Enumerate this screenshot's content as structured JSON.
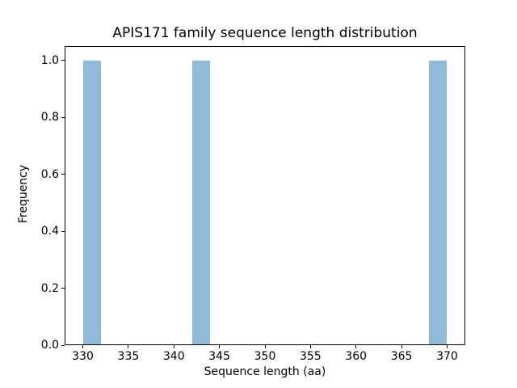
{
  "figure": {
    "background": "#ffffff"
  },
  "chart_data": {
    "type": "bar",
    "subtype": "histogram",
    "title": "APIS171 family sequence length distribution",
    "xlabel": "Sequence length (aa)",
    "ylabel": "Frequency",
    "bars": [
      {
        "x_start": 330,
        "x_end": 332,
        "height": 1.0
      },
      {
        "x_start": 342,
        "x_end": 344,
        "height": 1.0
      },
      {
        "x_start": 368,
        "x_end": 370,
        "height": 1.0
      }
    ],
    "xticks": [
      330,
      335,
      340,
      345,
      350,
      355,
      360,
      365,
      370
    ],
    "yticks": [
      0.0,
      0.2,
      0.4,
      0.6,
      0.8,
      1.0
    ],
    "xlim": [
      328,
      372
    ],
    "ylim": [
      0,
      1.05
    ],
    "bar_color": "#8fbbd9",
    "axis_color": "#000000",
    "grid": false,
    "legend_position": "none"
  }
}
